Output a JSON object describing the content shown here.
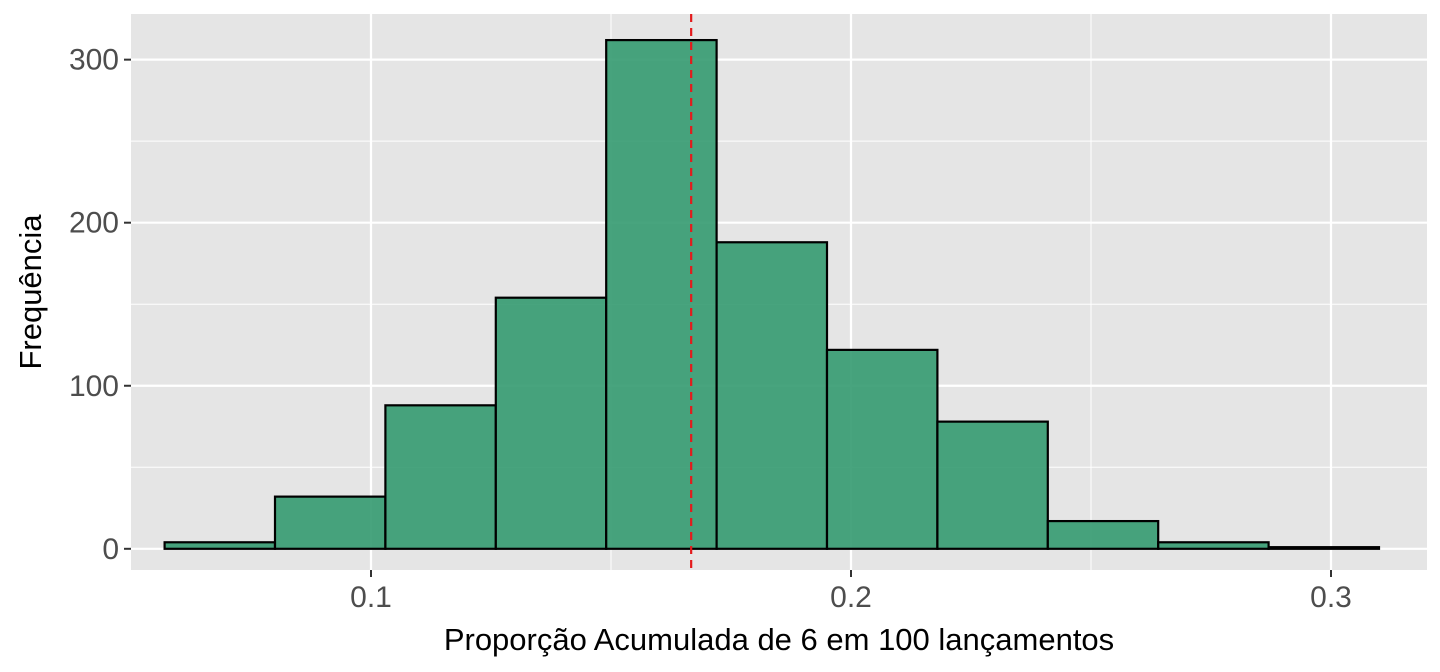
{
  "chart_data": {
    "type": "bar",
    "title": "",
    "xlabel": "Proporção Acumulada de 6 em 100 lançamentos",
    "ylabel": "Frequência",
    "xlim": [
      0.05,
      0.32
    ],
    "ylim": [
      -13,
      328
    ],
    "x_ticks": [
      0.1,
      0.2,
      0.3
    ],
    "x_tick_labels": [
      "0.1",
      "0.2",
      "0.3"
    ],
    "y_ticks": [
      0,
      100,
      200,
      300
    ],
    "y_tick_labels": [
      "0",
      "100",
      "200",
      "300"
    ],
    "grid": true,
    "bins": [
      {
        "x0": 0.057,
        "x1": 0.08,
        "count": 4
      },
      {
        "x0": 0.08,
        "x1": 0.103,
        "count": 32
      },
      {
        "x0": 0.103,
        "x1": 0.126,
        "count": 88
      },
      {
        "x0": 0.126,
        "x1": 0.149,
        "count": 154
      },
      {
        "x0": 0.149,
        "x1": 0.172,
        "count": 312
      },
      {
        "x0": 0.172,
        "x1": 0.195,
        "count": 188
      },
      {
        "x0": 0.195,
        "x1": 0.218,
        "count": 122
      },
      {
        "x0": 0.218,
        "x1": 0.241,
        "count": 78
      },
      {
        "x0": 0.241,
        "x1": 0.264,
        "count": 17
      },
      {
        "x0": 0.264,
        "x1": 0.287,
        "count": 4
      },
      {
        "x0": 0.287,
        "x1": 0.31,
        "count": 1
      }
    ],
    "reference_line": {
      "x": 0.1667,
      "style": "dashed"
    },
    "colors": {
      "bar_fill": "#3a9d74",
      "bar_stroke": "#000000",
      "reference_line": "#e41a1c",
      "panel_bg": "#e5e5e5",
      "grid": "#ffffff"
    }
  }
}
